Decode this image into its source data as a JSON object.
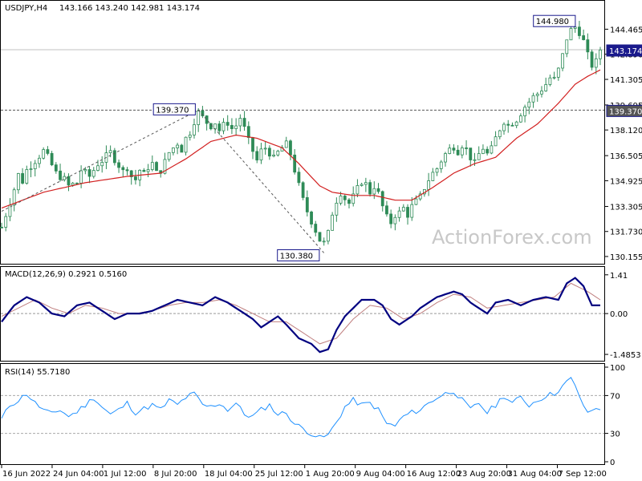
{
  "chart_data": [
    {
      "type": "candlestick",
      "title": "USDJPY,H4",
      "ohlc_text": "143.166 143.240 142.981 143.174",
      "watermark": "ActionForex.com",
      "yticks": [
        "144.465",
        "142.890",
        "141.305",
        "139.695",
        "138.120",
        "136.505",
        "134.925",
        "133.305",
        "131.730",
        "130.155"
      ],
      "ylim": [
        129.9,
        146.0
      ],
      "price_series": [
        [
          0,
          132.0
        ],
        [
          2,
          133.6
        ],
        [
          3,
          134.4
        ],
        [
          4,
          135.3
        ],
        [
          5,
          134.9
        ],
        [
          6,
          135.6
        ],
        [
          8,
          136.2
        ],
        [
          10,
          136.8
        ],
        [
          11,
          136.4
        ],
        [
          13,
          135.4
        ],
        [
          15,
          135.0
        ],
        [
          16,
          134.6
        ],
        [
          18,
          134.8
        ],
        [
          19,
          135.6
        ],
        [
          21,
          135.2
        ],
        [
          23,
          136.0
        ],
        [
          24,
          136.2
        ],
        [
          26,
          136.7
        ],
        [
          27,
          136.3
        ],
        [
          29,
          135.5
        ],
        [
          30,
          135.8
        ],
        [
          31,
          135.2
        ],
        [
          32,
          135.0
        ],
        [
          33,
          135.6
        ],
        [
          34,
          135.3
        ],
        [
          35,
          135.8
        ],
        [
          36,
          136.0
        ],
        [
          37,
          135.4
        ],
        [
          38,
          135.6
        ],
        [
          39,
          136.1
        ],
        [
          40,
          136.7
        ],
        [
          42,
          137.3
        ],
        [
          43,
          136.9
        ],
        [
          44,
          137.6
        ],
        [
          45,
          138.0
        ],
        [
          46,
          138.7
        ],
        [
          47,
          139.2
        ],
        [
          48,
          138.9
        ],
        [
          49,
          138.6
        ],
        [
          50,
          138.4
        ],
        [
          51,
          138.6
        ],
        [
          52,
          138.1
        ],
        [
          53,
          138.4
        ],
        [
          54,
          138.6
        ],
        [
          55,
          138.2
        ],
        [
          56,
          138.4
        ],
        [
          57,
          138.9
        ],
        [
          58,
          138.2
        ],
        [
          59,
          137.4
        ],
        [
          60,
          136.8
        ],
        [
          61,
          136.2
        ],
        [
          62,
          136.8
        ],
        [
          63,
          137.0
        ],
        [
          64,
          136.7
        ],
        [
          65,
          136.3
        ],
        [
          66,
          136.7
        ],
        [
          67,
          137.0
        ],
        [
          68,
          137.2
        ],
        [
          69,
          136.6
        ],
        [
          70,
          135.6
        ],
        [
          71,
          134.6
        ],
        [
          72,
          133.7
        ],
        [
          73,
          133.0
        ],
        [
          74,
          132.4
        ],
        [
          75,
          131.8
        ],
        [
          76,
          131.2
        ],
        [
          77,
          131.0
        ],
        [
          78,
          131.6
        ],
        [
          79,
          132.9
        ],
        [
          80,
          133.7
        ],
        [
          81,
          134.2
        ],
        [
          82,
          133.8
        ],
        [
          83,
          133.5
        ],
        [
          84,
          133.9
        ],
        [
          85,
          134.4
        ],
        [
          86,
          134.9
        ],
        [
          87,
          134.7
        ],
        [
          88,
          134.2
        ],
        [
          89,
          134.6
        ],
        [
          90,
          134.1
        ],
        [
          91,
          133.3
        ],
        [
          92,
          132.6
        ],
        [
          93,
          132.3
        ],
        [
          94,
          132.8
        ],
        [
          95,
          132.9
        ],
        [
          96,
          133.2
        ],
        [
          97,
          132.8
        ],
        [
          98,
          133.3
        ],
        [
          99,
          133.6
        ],
        [
          100,
          133.9
        ],
        [
          101,
          134.5
        ],
        [
          102,
          135.0
        ],
        [
          103,
          135.4
        ],
        [
          104,
          135.7
        ],
        [
          105,
          136.2
        ],
        [
          106,
          136.6
        ],
        [
          107,
          136.9
        ],
        [
          108,
          137.1
        ],
        [
          109,
          136.8
        ],
        [
          110,
          137.2
        ],
        [
          111,
          136.9
        ],
        [
          112,
          136.4
        ],
        [
          113,
          136.0
        ],
        [
          114,
          136.6
        ],
        [
          115,
          137.0
        ],
        [
          116,
          136.6
        ],
        [
          117,
          136.9
        ],
        [
          118,
          137.6
        ],
        [
          119,
          138.2
        ],
        [
          120,
          138.7
        ],
        [
          121,
          138.4
        ],
        [
          122,
          138.6
        ],
        [
          123,
          138.8
        ],
        [
          124,
          139.2
        ],
        [
          125,
          139.6
        ],
        [
          126,
          139.9
        ],
        [
          127,
          140.2
        ],
        [
          128,
          140.4
        ],
        [
          129,
          140.7
        ],
        [
          130,
          141.0
        ],
        [
          131,
          141.4
        ],
        [
          132,
          141.3
        ],
        [
          133,
          141.9
        ],
        [
          134,
          142.8
        ],
        [
          135,
          143.9
        ],
        [
          136,
          144.4
        ],
        [
          137,
          144.6
        ],
        [
          138,
          144.3
        ],
        [
          139,
          143.7
        ],
        [
          140,
          142.8
        ],
        [
          141,
          142.2
        ],
        [
          142,
          142.4
        ],
        [
          143,
          143.2
        ]
      ],
      "ma_series": [
        [
          0,
          133.2
        ],
        [
          10,
          134.2
        ],
        [
          20,
          134.8
        ],
        [
          30,
          135.2
        ],
        [
          38,
          135.4
        ],
        [
          44,
          136.3
        ],
        [
          50,
          137.4
        ],
        [
          56,
          137.8
        ],
        [
          61,
          137.6
        ],
        [
          67,
          137.0
        ],
        [
          71,
          136.0
        ],
        [
          76,
          134.6
        ],
        [
          79,
          134.2
        ],
        [
          84,
          134.0
        ],
        [
          89,
          134.0
        ],
        [
          94,
          133.7
        ],
        [
          98,
          133.7
        ],
        [
          103,
          134.5
        ],
        [
          108,
          135.4
        ],
        [
          113,
          136.0
        ],
        [
          118,
          136.4
        ],
        [
          123,
          137.6
        ],
        [
          128,
          138.5
        ],
        [
          133,
          139.8
        ],
        [
          137,
          141.0
        ],
        [
          140,
          141.5
        ],
        [
          143,
          141.9
        ]
      ],
      "annotations": [
        {
          "label": "144.980",
          "value": 144.98
        },
        {
          "label": "139.370",
          "value": 139.37
        },
        {
          "label": "130.380",
          "value": 130.38
        }
      ],
      "current_price_label": "143.174",
      "current_price": 143.174,
      "horizontal_level_label": "139.370",
      "horizontal_level": 139.37,
      "colors": {
        "candle_up": "#2e8b57",
        "candle_dn": "#2e8b57",
        "ma": "#d22020",
        "grid": "#dddddd",
        "level": "#555555",
        "label_box": "#1a1a8c"
      }
    },
    {
      "type": "line",
      "title": "MACD(12,26,9) 0.2921 0.5160",
      "yticks": [
        "1.41",
        "0.00",
        "-1.4853"
      ],
      "ylim": [
        -1.6,
        1.55
      ],
      "macd": [
        [
          0,
          -0.3
        ],
        [
          3,
          0.3
        ],
        [
          6,
          0.6
        ],
        [
          9,
          0.4
        ],
        [
          12,
          0.0
        ],
        [
          15,
          -0.1
        ],
        [
          18,
          0.3
        ],
        [
          21,
          0.4
        ],
        [
          24,
          0.1
        ],
        [
          27,
          -0.2
        ],
        [
          30,
          0.0
        ],
        [
          33,
          0.0
        ],
        [
          36,
          0.1
        ],
        [
          39,
          0.3
        ],
        [
          42,
          0.5
        ],
        [
          45,
          0.4
        ],
        [
          48,
          0.3
        ],
        [
          51,
          0.6
        ],
        [
          54,
          0.4
        ],
        [
          57,
          0.1
        ],
        [
          60,
          -0.2
        ],
        [
          62,
          -0.5
        ],
        [
          64,
          -0.3
        ],
        [
          66,
          -0.1
        ],
        [
          68,
          -0.4
        ],
        [
          71,
          -0.9
        ],
        [
          74,
          -1.1
        ],
        [
          76,
          -1.4
        ],
        [
          78,
          -1.3
        ],
        [
          80,
          -0.6
        ],
        [
          82,
          -0.1
        ],
        [
          84,
          0.2
        ],
        [
          86,
          0.5
        ],
        [
          89,
          0.5
        ],
        [
          91,
          0.3
        ],
        [
          93,
          -0.2
        ],
        [
          95,
          -0.4
        ],
        [
          98,
          -0.1
        ],
        [
          100,
          0.2
        ],
        [
          102,
          0.4
        ],
        [
          104,
          0.6
        ],
        [
          106,
          0.7
        ],
        [
          108,
          0.8
        ],
        [
          110,
          0.7
        ],
        [
          112,
          0.4
        ],
        [
          114,
          0.2
        ],
        [
          116,
          0.0
        ],
        [
          118,
          0.4
        ],
        [
          121,
          0.5
        ],
        [
          124,
          0.3
        ],
        [
          127,
          0.5
        ],
        [
          130,
          0.6
        ],
        [
          133,
          0.5
        ],
        [
          135,
          1.1
        ],
        [
          137,
          1.3
        ],
        [
          139,
          1.0
        ],
        [
          141,
          0.3
        ],
        [
          143,
          0.3
        ]
      ],
      "signal": [
        [
          0,
          -0.1
        ],
        [
          4,
          0.2
        ],
        [
          8,
          0.5
        ],
        [
          12,
          0.2
        ],
        [
          16,
          0.0
        ],
        [
          20,
          0.3
        ],
        [
          24,
          0.2
        ],
        [
          28,
          0.0
        ],
        [
          32,
          0.0
        ],
        [
          36,
          0.1
        ],
        [
          40,
          0.3
        ],
        [
          44,
          0.4
        ],
        [
          48,
          0.4
        ],
        [
          52,
          0.5
        ],
        [
          56,
          0.3
        ],
        [
          60,
          0.0
        ],
        [
          64,
          -0.3
        ],
        [
          68,
          -0.3
        ],
        [
          72,
          -0.7
        ],
        [
          76,
          -1.1
        ],
        [
          80,
          -0.9
        ],
        [
          84,
          -0.2
        ],
        [
          88,
          0.3
        ],
        [
          92,
          0.2
        ],
        [
          96,
          -0.2
        ],
        [
          100,
          0.0
        ],
        [
          104,
          0.4
        ],
        [
          108,
          0.7
        ],
        [
          112,
          0.6
        ],
        [
          116,
          0.2
        ],
        [
          120,
          0.3
        ],
        [
          124,
          0.4
        ],
        [
          128,
          0.5
        ],
        [
          132,
          0.6
        ],
        [
          136,
          1.1
        ],
        [
          140,
          0.8
        ],
        [
          143,
          0.5
        ]
      ],
      "colors": {
        "macd": "#000080",
        "signal": "#c08080",
        "zero": "#999999"
      }
    },
    {
      "type": "line",
      "title": "RSI(14) 55.7180",
      "yticks": [
        "100",
        "70",
        "30",
        "0"
      ],
      "ylim": [
        0,
        100
      ],
      "rsi": [
        [
          0,
          45
        ],
        [
          2,
          60
        ],
        [
          4,
          65
        ],
        [
          6,
          72
        ],
        [
          8,
          62
        ],
        [
          10,
          55
        ],
        [
          12,
          50
        ],
        [
          14,
          55
        ],
        [
          16,
          48
        ],
        [
          18,
          53
        ],
        [
          20,
          60
        ],
        [
          22,
          68
        ],
        [
          24,
          58
        ],
        [
          26,
          50
        ],
        [
          28,
          55
        ],
        [
          30,
          62
        ],
        [
          32,
          52
        ],
        [
          34,
          56
        ],
        [
          36,
          60
        ],
        [
          38,
          55
        ],
        [
          40,
          65
        ],
        [
          42,
          60
        ],
        [
          44,
          68
        ],
        [
          46,
          72
        ],
        [
          48,
          60
        ],
        [
          50,
          58
        ],
        [
          52,
          62
        ],
        [
          54,
          55
        ],
        [
          56,
          62
        ],
        [
          58,
          50
        ],
        [
          60,
          48
        ],
        [
          62,
          55
        ],
        [
          64,
          60
        ],
        [
          66,
          50
        ],
        [
          68,
          52
        ],
        [
          70,
          40
        ],
        [
          72,
          35
        ],
        [
          74,
          30
        ],
        [
          76,
          25
        ],
        [
          78,
          28
        ],
        [
          80,
          42
        ],
        [
          82,
          58
        ],
        [
          84,
          65
        ],
        [
          86,
          60
        ],
        [
          88,
          62
        ],
        [
          90,
          55
        ],
        [
          92,
          40
        ],
        [
          94,
          38
        ],
        [
          96,
          48
        ],
        [
          98,
          52
        ],
        [
          100,
          55
        ],
        [
          102,
          62
        ],
        [
          104,
          68
        ],
        [
          106,
          72
        ],
        [
          108,
          75
        ],
        [
          110,
          65
        ],
        [
          112,
          55
        ],
        [
          114,
          62
        ],
        [
          116,
          52
        ],
        [
          118,
          60
        ],
        [
          120,
          70
        ],
        [
          122,
          62
        ],
        [
          124,
          68
        ],
        [
          126,
          60
        ],
        [
          128,
          65
        ],
        [
          130,
          70
        ],
        [
          132,
          72
        ],
        [
          134,
          80
        ],
        [
          136,
          88
        ],
        [
          138,
          70
        ],
        [
          139,
          60
        ],
        [
          140,
          50
        ],
        [
          141,
          55
        ],
        [
          143,
          56
        ]
      ],
      "colors": {
        "rsi": "#1e90ff",
        "levels": "#aaaaaa"
      }
    }
  ],
  "xticks": [
    "16 Jun 2022",
    "24 Jun 04:00",
    "1 Jul 12:00",
    "8 Jul 20:00",
    "18 Jul 04:00",
    "25 Jul 12:00",
    "1 Aug 20:00",
    "9 Aug 04:00",
    "16 Aug 12:00",
    "23 Aug 20:00",
    "31 Aug 04:00",
    "7 Sep 12:00"
  ],
  "x_bars": 144
}
